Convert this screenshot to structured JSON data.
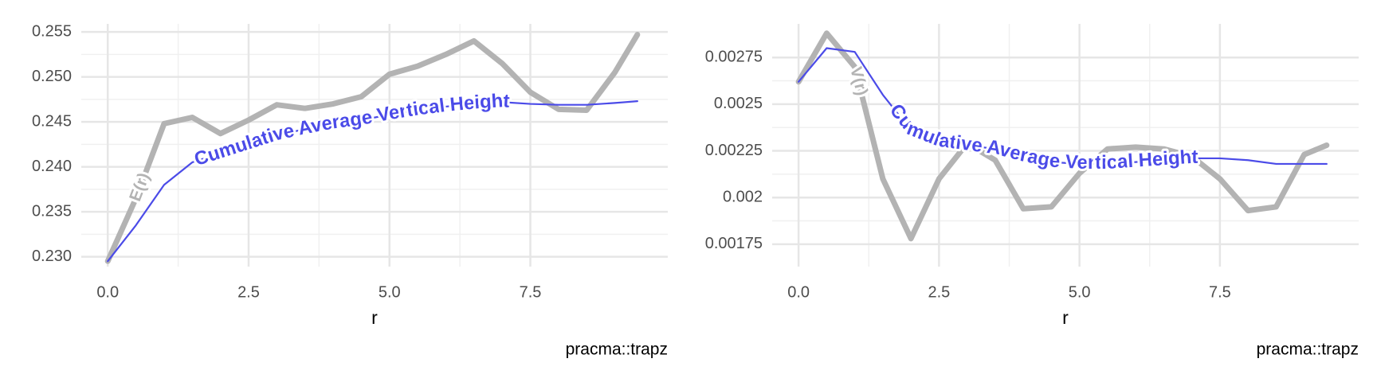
{
  "chart_data": [
    {
      "type": "line",
      "xlabel": "r",
      "caption": "pracma::trapz",
      "x": [
        0,
        0.5,
        1,
        1.5,
        2,
        2.5,
        3,
        3.5,
        4,
        4.5,
        5,
        5.5,
        6,
        6.5,
        7,
        7.5,
        8,
        8.5,
        9,
        9.4
      ],
      "series": [
        {
          "name": "E(r)",
          "color": "#b3b3b3",
          "values": [
            0.2295,
            0.2365,
            0.2448,
            0.2455,
            0.2437,
            0.2452,
            0.2469,
            0.2465,
            0.247,
            0.2478,
            0.2503,
            0.2512,
            0.2525,
            0.254,
            0.2515,
            0.2483,
            0.2464,
            0.2463,
            0.2505,
            0.2547
          ]
        },
        {
          "name": "Cumulative Average Vertical Height",
          "color": "#4b4be8",
          "values": [
            0.2295,
            0.2335,
            0.238,
            0.2405,
            0.2415,
            0.2425,
            0.2435,
            0.2442,
            0.2448,
            0.2452,
            0.2458,
            0.2463,
            0.2467,
            0.247,
            0.2472,
            0.247,
            0.2469,
            0.2469,
            0.2471,
            0.2473
          ]
        }
      ],
      "xlim": [
        -0.47,
        9.94
      ],
      "xticks": [
        {
          "value": 0,
          "label": "0.0"
        },
        2.5,
        {
          "value": 5,
          "label": "5.0"
        },
        7.5
      ],
      "ylim": [
        0.2289,
        0.2559
      ],
      "yticks": [
        {
          "value": 0.23,
          "label": "0.230"
        },
        0.235,
        {
          "value": 0.24,
          "label": "0.240"
        },
        0.245,
        {
          "value": 0.25,
          "label": "0.250"
        },
        0.255
      ],
      "grid": true
    },
    {
      "type": "line",
      "xlabel": "r",
      "caption": "pracma::trapz",
      "x": [
        0,
        0.5,
        1,
        1.5,
        2,
        2.5,
        3,
        3.5,
        4,
        4.5,
        5,
        5.5,
        6,
        6.5,
        7,
        7.5,
        8,
        8.5,
        9,
        9.4
      ],
      "series": [
        {
          "name": "V(r)",
          "color": "#b3b3b3",
          "values": [
            0.00262,
            0.00288,
            0.0027,
            0.0021,
            0.00178,
            0.0021,
            0.00229,
            0.0022,
            0.00194,
            0.00195,
            0.00213,
            0.00226,
            0.00227,
            0.00226,
            0.00222,
            0.0021,
            0.00193,
            0.00195,
            0.00223,
            0.00228
          ]
        },
        {
          "name": "Cumulative Average Vertical Height",
          "color": "#4b4be8",
          "values": [
            0.00262,
            0.0028,
            0.00278,
            0.00255,
            0.00236,
            0.0023,
            0.00228,
            0.00226,
            0.00222,
            0.00219,
            0.00218,
            0.00218,
            0.00219,
            0.0022,
            0.00221,
            0.00221,
            0.0022,
            0.00218,
            0.00218,
            0.00218
          ]
        }
      ],
      "xlim": [
        -0.47,
        9.97
      ],
      "xticks": [
        {
          "value": 0,
          "label": "0.0"
        },
        2.5,
        {
          "value": 5,
          "label": "5.0"
        },
        7.5
      ],
      "ylim": [
        0.00163,
        0.00293
      ],
      "yticks": [
        0.00175,
        0.002,
        0.00225,
        0.0025,
        0.00275
      ],
      "grid": true
    }
  ]
}
